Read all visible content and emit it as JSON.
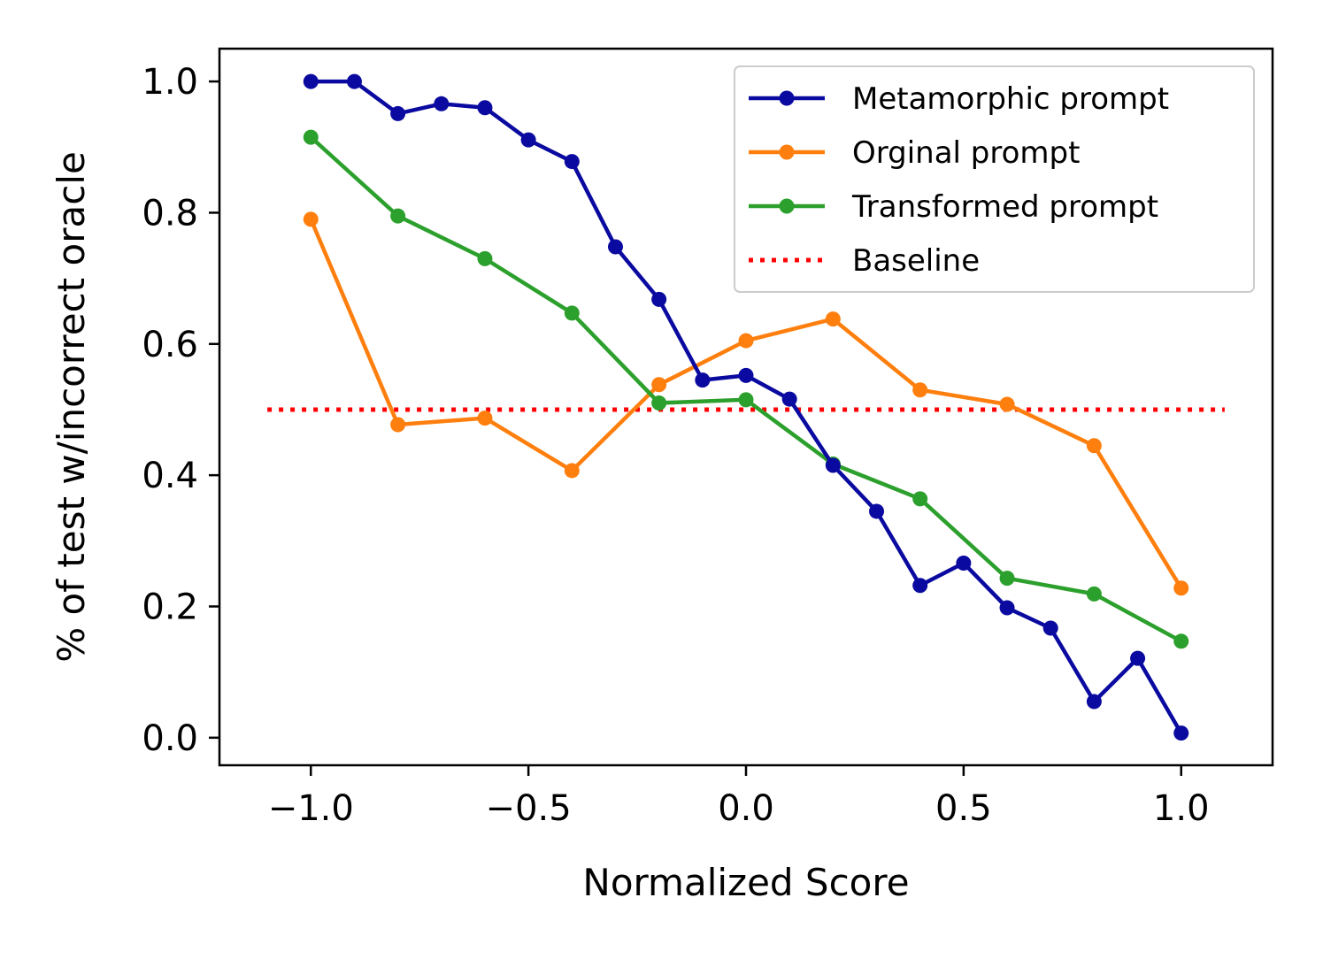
{
  "chart_data": {
    "type": "line",
    "title": "",
    "xlabel": "Normalized Score",
    "ylabel": "% of test w/incorrect oracle",
    "xlim": [
      -1.21,
      1.21
    ],
    "ylim": [
      -0.042,
      1.05
    ],
    "xticks": [
      -1.0,
      -0.5,
      0.0,
      0.5,
      1.0
    ],
    "xtick_labels": [
      "−1.0",
      "−0.5",
      "0.0",
      "0.5",
      "1.0"
    ],
    "yticks": [
      0.0,
      0.2,
      0.4,
      0.6,
      0.8,
      1.0
    ],
    "ytick_labels": [
      "0.0",
      "0.2",
      "0.4",
      "0.6",
      "0.8",
      "1.0"
    ],
    "grid": false,
    "legend_position": "top-right",
    "series": [
      {
        "name": "Metamorphic prompt",
        "color": "#0a0aa0",
        "style": "line-marker",
        "x": [
          -1.0,
          -0.9,
          -0.8,
          -0.7,
          -0.6,
          -0.5,
          -0.4,
          -0.3,
          -0.2,
          -0.1,
          0.0,
          0.1,
          0.2,
          0.3,
          0.4,
          0.5,
          0.6,
          0.7,
          0.8,
          0.9,
          1.0
        ],
        "y": [
          1.0,
          1.0,
          0.951,
          0.966,
          0.96,
          0.911,
          0.878,
          0.748,
          0.668,
          0.545,
          0.552,
          0.516,
          0.415,
          0.345,
          0.232,
          0.266,
          0.198,
          0.167,
          0.055,
          0.121,
          0.007
        ]
      },
      {
        "name": "Orginal prompt",
        "color": "#ff7f0e",
        "style": "line-marker",
        "x": [
          -1.0,
          -0.8,
          -0.6,
          -0.4,
          -0.2,
          0.0,
          0.2,
          0.4,
          0.6,
          0.8,
          1.0
        ],
        "y": [
          0.79,
          0.477,
          0.487,
          0.407,
          0.538,
          0.605,
          0.638,
          0.53,
          0.508,
          0.445,
          0.228
        ]
      },
      {
        "name": "Transformed prompt",
        "color": "#2ca02c",
        "style": "line-marker",
        "x": [
          -1.0,
          -0.8,
          -0.6,
          -0.4,
          -0.2,
          0.0,
          0.2,
          0.4,
          0.6,
          0.8,
          1.0
        ],
        "y": [
          0.915,
          0.795,
          0.73,
          0.647,
          0.51,
          0.515,
          0.417,
          0.364,
          0.243,
          0.219,
          0.147
        ]
      },
      {
        "name": "Baseline",
        "color": "#ff0000",
        "style": "dotted",
        "x": [
          -1.1,
          1.1
        ],
        "y": [
          0.5,
          0.5
        ]
      }
    ]
  }
}
